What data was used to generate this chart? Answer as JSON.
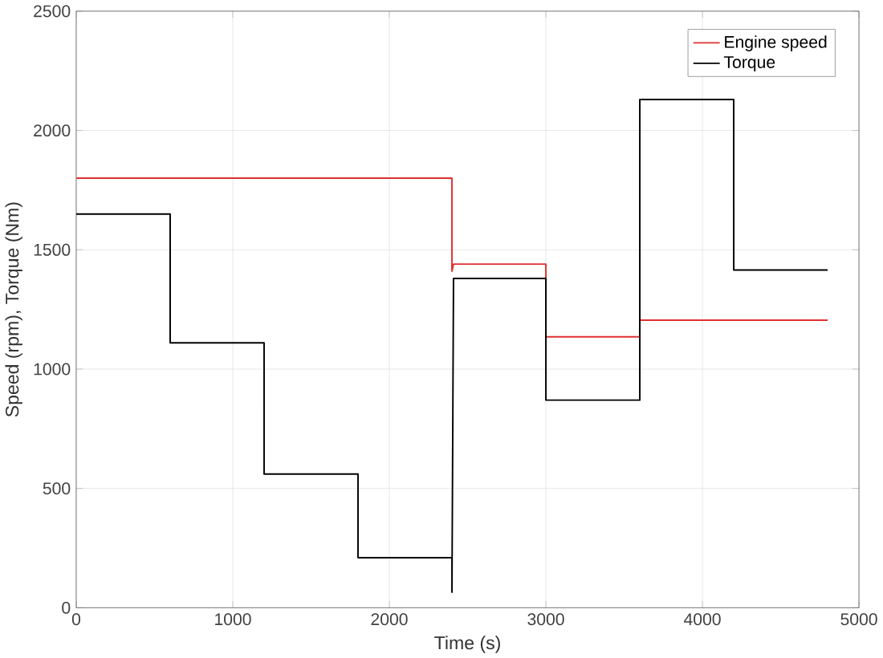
{
  "chart_data": {
    "type": "line",
    "xlabel": "Time (s)",
    "ylabel": "Speed (rpm), Torque (Nm)",
    "xlim": [
      0,
      5000
    ],
    "ylim": [
      0,
      2500
    ],
    "xticks": [
      0,
      1000,
      2000,
      3000,
      4000,
      5000
    ],
    "yticks": [
      0,
      500,
      1000,
      1500,
      2000,
      2500
    ],
    "grid": true,
    "legend": "top right",
    "marker": "none",
    "line_style": "solid",
    "series": [
      {
        "name": "Engine speed",
        "color": "#e03030",
        "x": [
          0,
          2400,
          2400,
          2410,
          3000,
          3000,
          3600,
          3600,
          4800
        ],
        "values": [
          1800,
          1800,
          1410,
          1440,
          1440,
          1135,
          1135,
          1205,
          1205
        ]
      },
      {
        "name": "Torque",
        "color": "#000000",
        "x": [
          0,
          600,
          600,
          1200,
          1200,
          1800,
          1800,
          2400,
          2400,
          2410,
          3000,
          3000,
          3600,
          3600,
          4200,
          4200,
          4800
        ],
        "values": [
          1650,
          1650,
          1110,
          1110,
          560,
          560,
          210,
          210,
          65,
          1380,
          1380,
          870,
          870,
          2130,
          2130,
          1415,
          1415
        ]
      }
    ]
  }
}
